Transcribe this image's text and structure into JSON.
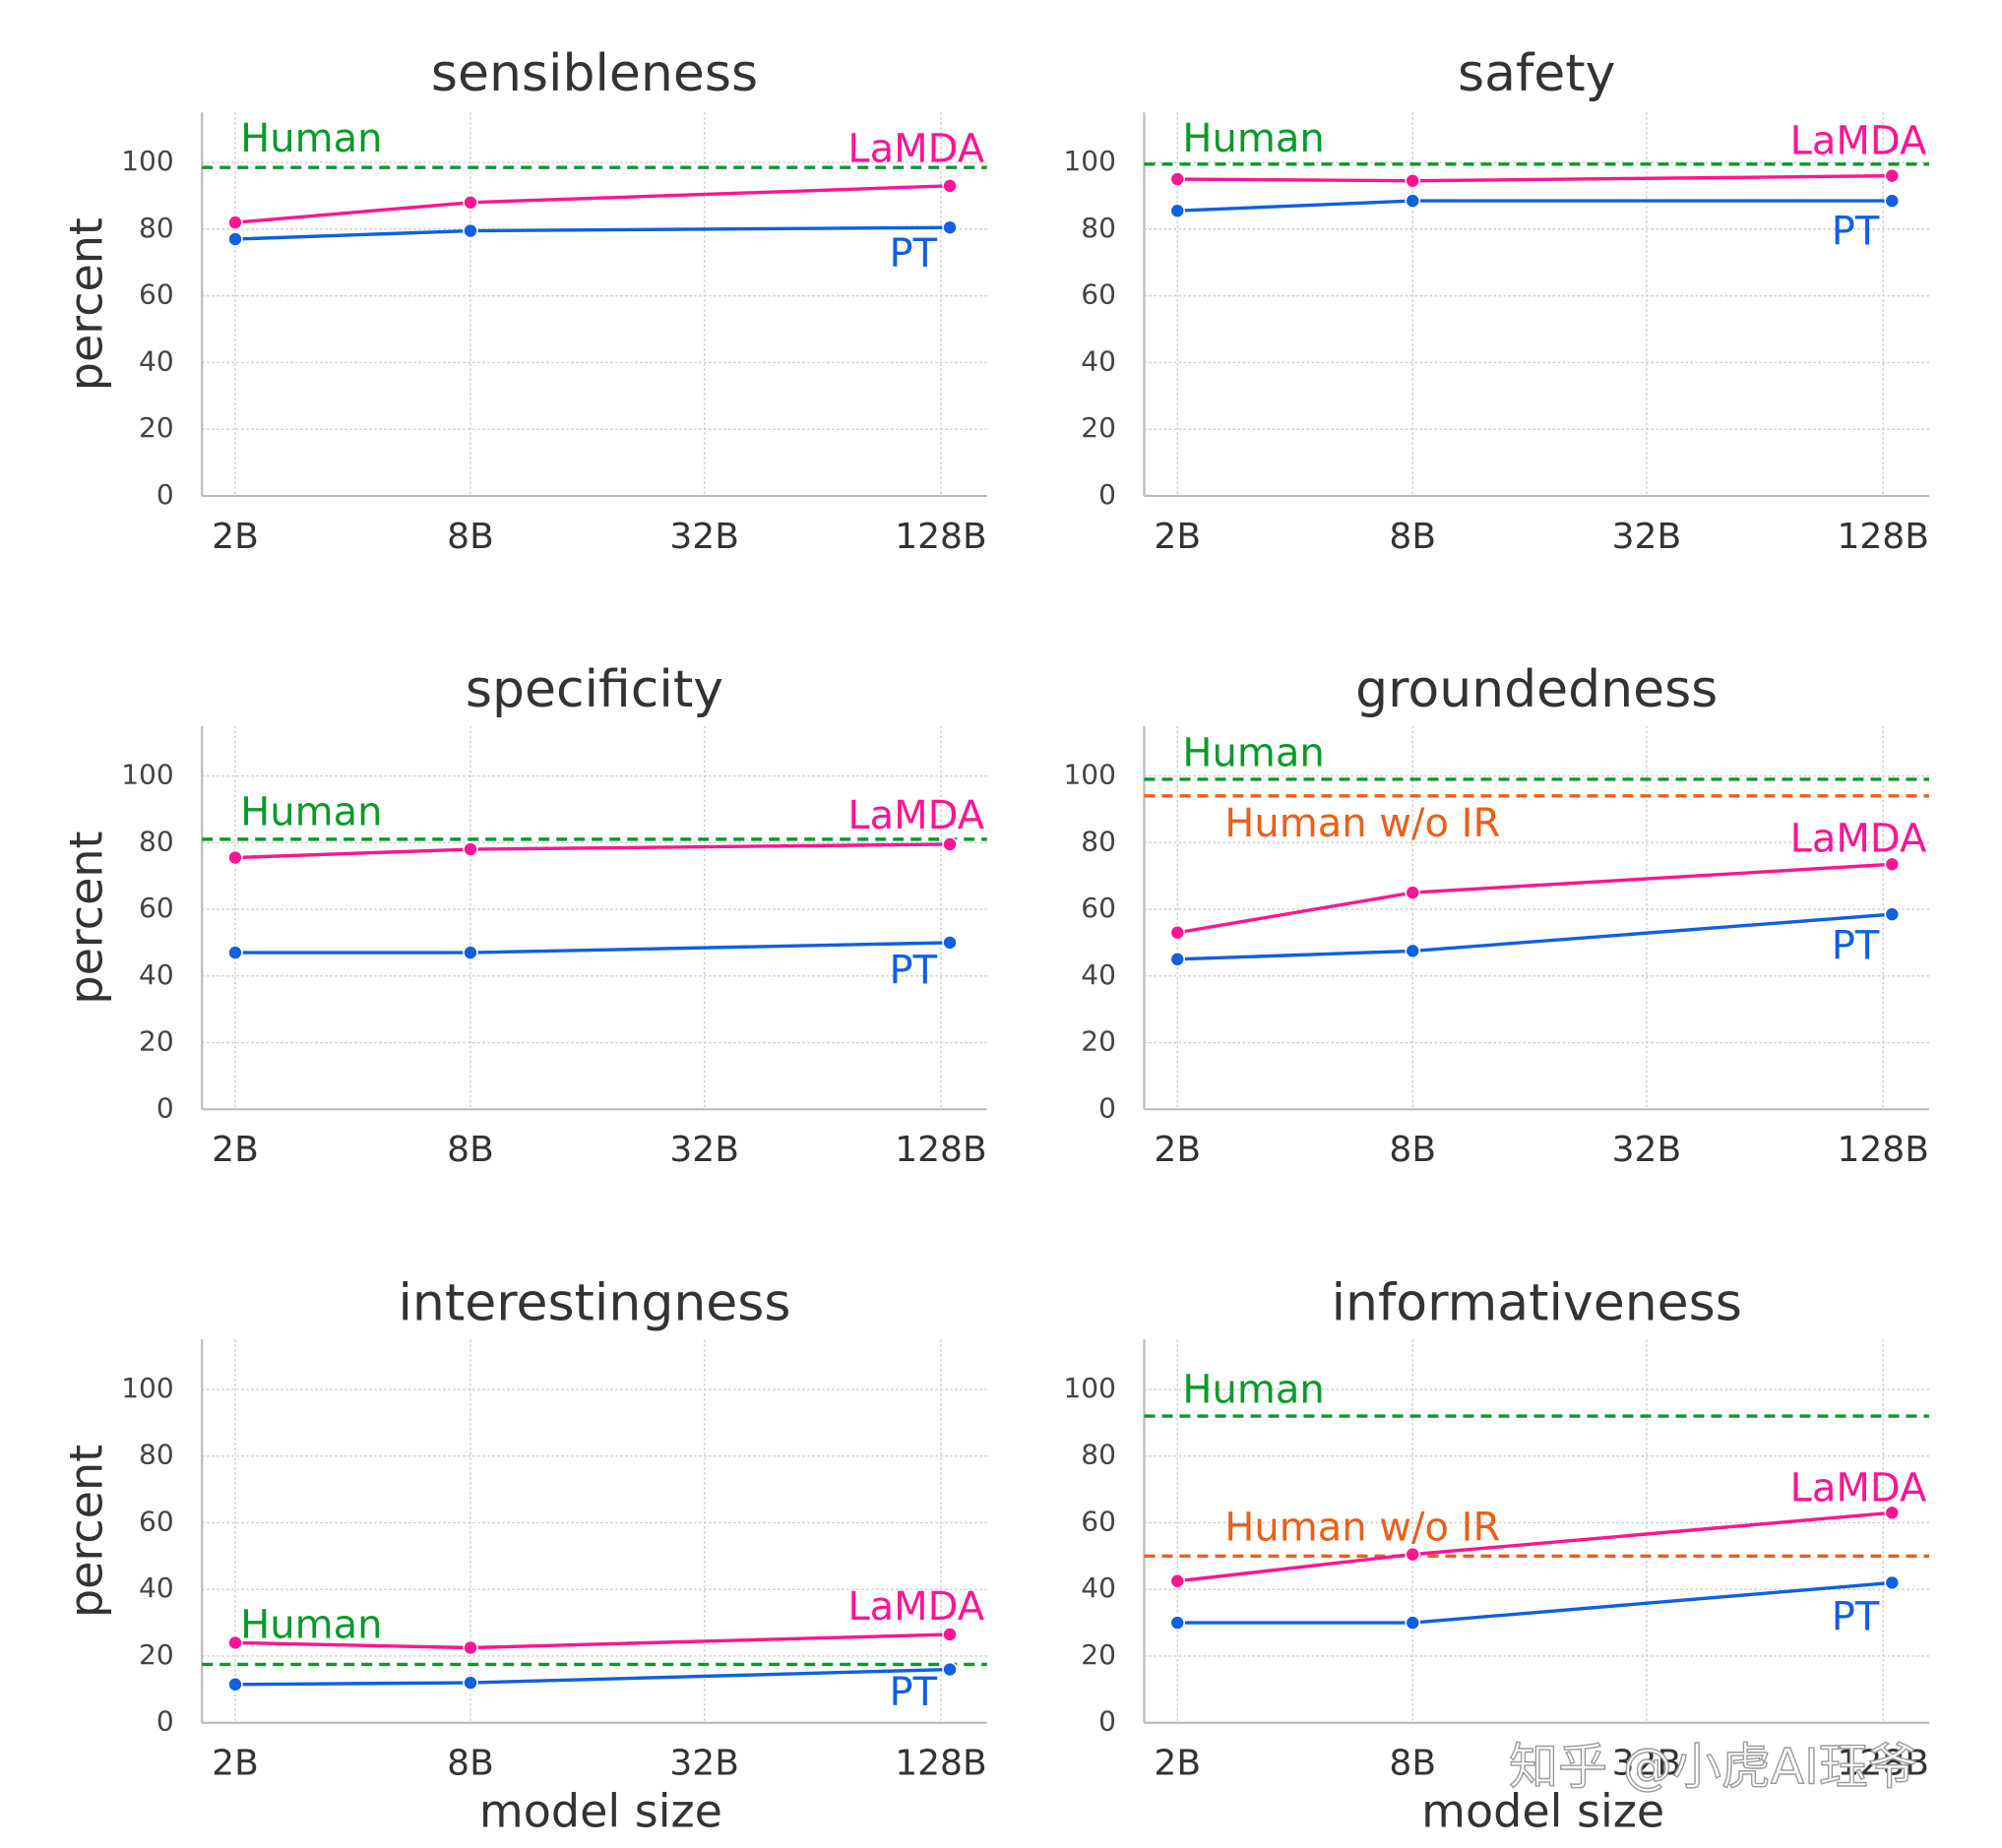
{
  "colors": {
    "human": "#0a9a2a",
    "human_wo_ir": "#e8601c",
    "lamda": "#ff1493",
    "pt": "#1060e0",
    "grid": "#cccccc",
    "axis": "#bbbbbb",
    "text": "#333333"
  },
  "watermark": "知乎 @小虎AI珏爷",
  "chart_data": [
    {
      "type": "line",
      "title": "sensibleness",
      "categories": [
        "2B",
        "8B",
        "32B",
        "128B"
      ],
      "xlabel": "",
      "ylabel": "percent",
      "ylim": [
        0,
        115
      ],
      "yticks": [
        0,
        20,
        40,
        60,
        80,
        100
      ],
      "series": [
        {
          "name": "LaMDA",
          "points": [
            {
              "x": "2B",
              "y": 82
            },
            {
              "x": "8B",
              "y": 88
            },
            {
              "x": "128B",
              "y": 93
            }
          ]
        },
        {
          "name": "PT",
          "points": [
            {
              "x": "2B",
              "y": 77
            },
            {
              "x": "8B",
              "y": 79.5
            },
            {
              "x": "128B",
              "y": 80.5
            }
          ]
        }
      ],
      "references": [
        {
          "name": "Human",
          "value": 98.5
        }
      ]
    },
    {
      "type": "line",
      "title": "safety",
      "categories": [
        "2B",
        "8B",
        "32B",
        "128B"
      ],
      "xlabel": "",
      "ylabel": "",
      "ylim": [
        0,
        115
      ],
      "yticks": [
        0,
        20,
        40,
        60,
        80,
        100
      ],
      "series": [
        {
          "name": "LaMDA",
          "points": [
            {
              "x": "2B",
              "y": 95
            },
            {
              "x": "8B",
              "y": 94.5
            },
            {
              "x": "128B",
              "y": 96
            }
          ]
        },
        {
          "name": "PT",
          "points": [
            {
              "x": "2B",
              "y": 85.5
            },
            {
              "x": "8B",
              "y": 88.5
            },
            {
              "x": "128B",
              "y": 88.5
            }
          ]
        }
      ],
      "references": [
        {
          "name": "Human",
          "value": 99.5
        }
      ]
    },
    {
      "type": "line",
      "title": "specificity",
      "categories": [
        "2B",
        "8B",
        "32B",
        "128B"
      ],
      "xlabel": "",
      "ylabel": "percent",
      "ylim": [
        0,
        115
      ],
      "yticks": [
        0,
        20,
        40,
        60,
        80,
        100
      ],
      "series": [
        {
          "name": "LaMDA",
          "points": [
            {
              "x": "2B",
              "y": 75.5
            },
            {
              "x": "8B",
              "y": 78
            },
            {
              "x": "128B",
              "y": 79.5
            }
          ]
        },
        {
          "name": "PT",
          "points": [
            {
              "x": "2B",
              "y": 47
            },
            {
              "x": "8B",
              "y": 47
            },
            {
              "x": "128B",
              "y": 50
            }
          ]
        }
      ],
      "references": [
        {
          "name": "Human",
          "value": 81
        }
      ]
    },
    {
      "type": "line",
      "title": "groundedness",
      "categories": [
        "2B",
        "8B",
        "32B",
        "128B"
      ],
      "xlabel": "",
      "ylabel": "",
      "ylim": [
        0,
        115
      ],
      "yticks": [
        0,
        20,
        40,
        60,
        80,
        100
      ],
      "series": [
        {
          "name": "LaMDA",
          "points": [
            {
              "x": "2B",
              "y": 53
            },
            {
              "x": "8B",
              "y": 65
            },
            {
              "x": "128B",
              "y": 73.5
            }
          ]
        },
        {
          "name": "PT",
          "points": [
            {
              "x": "2B",
              "y": 45
            },
            {
              "x": "8B",
              "y": 47.5
            },
            {
              "x": "128B",
              "y": 58.5
            }
          ]
        }
      ],
      "references": [
        {
          "name": "Human",
          "value": 99
        },
        {
          "name": "Human w/o IR",
          "value": 94
        }
      ]
    },
    {
      "type": "line",
      "title": "interestingness",
      "categories": [
        "2B",
        "8B",
        "32B",
        "128B"
      ],
      "xlabel": "model size",
      "ylabel": "percent",
      "ylim": [
        0,
        115
      ],
      "yticks": [
        0,
        20,
        40,
        60,
        80,
        100
      ],
      "series": [
        {
          "name": "LaMDA",
          "points": [
            {
              "x": "2B",
              "y": 24
            },
            {
              "x": "8B",
              "y": 22.5
            },
            {
              "x": "128B",
              "y": 26.5
            }
          ]
        },
        {
          "name": "PT",
          "points": [
            {
              "x": "2B",
              "y": 11.5
            },
            {
              "x": "8B",
              "y": 12
            },
            {
              "x": "128B",
              "y": 16
            }
          ]
        }
      ],
      "references": [
        {
          "name": "Human",
          "value": 17.5
        }
      ]
    },
    {
      "type": "line",
      "title": "informativeness",
      "categories": [
        "2B",
        "8B",
        "32B",
        "128B"
      ],
      "xlabel": "model size",
      "ylabel": "",
      "ylim": [
        0,
        115
      ],
      "yticks": [
        0,
        20,
        40,
        60,
        80,
        100
      ],
      "series": [
        {
          "name": "LaMDA",
          "points": [
            {
              "x": "2B",
              "y": 42.5
            },
            {
              "x": "8B",
              "y": 50.5
            },
            {
              "x": "128B",
              "y": 63
            }
          ]
        },
        {
          "name": "PT",
          "points": [
            {
              "x": "2B",
              "y": 30
            },
            {
              "x": "8B",
              "y": 30
            },
            {
              "x": "128B",
              "y": 42
            }
          ]
        }
      ],
      "references": [
        {
          "name": "Human",
          "value": 92
        },
        {
          "name": "Human w/o IR",
          "value": 50
        }
      ]
    }
  ]
}
